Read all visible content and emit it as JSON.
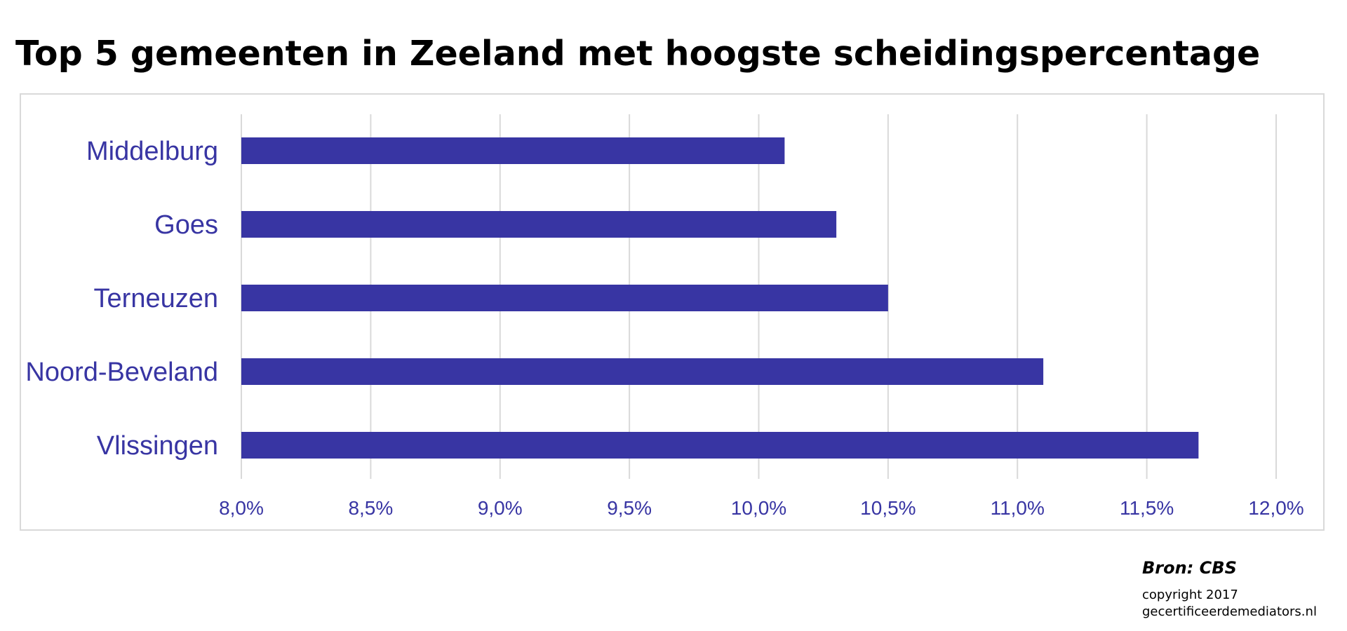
{
  "colors": {
    "bar": "#3835a3",
    "label": "#3835a3",
    "grid": "#d9d9d9",
    "frame": "#d9d9d9"
  },
  "chart_data": {
    "type": "bar",
    "orientation": "horizontal",
    "title": "Top 5 gemeenten in Zeeland met hoogste scheidingspercentage",
    "categories": [
      "Middelburg",
      "Goes",
      "Terneuzen",
      "Noord-Beveland",
      "Vlissingen"
    ],
    "values": [
      10.1,
      10.3,
      10.5,
      11.1,
      11.7
    ],
    "xlim": [
      8.0,
      12.0
    ],
    "xticks": [
      8.0,
      8.5,
      9.0,
      9.5,
      10.0,
      10.5,
      11.0,
      11.5,
      12.0
    ],
    "xtick_labels": [
      "8,0%",
      "8,5%",
      "9,0%",
      "9,5%",
      "10,0%",
      "10,5%",
      "11,0%",
      "11,5%",
      "12,0%"
    ],
    "xlabel": "",
    "ylabel": "",
    "grid": true,
    "legend": false
  },
  "footer": {
    "source": "Bron: CBS",
    "copyright": "copyright 2017",
    "website": "gecertificeerdemediators.nl"
  }
}
